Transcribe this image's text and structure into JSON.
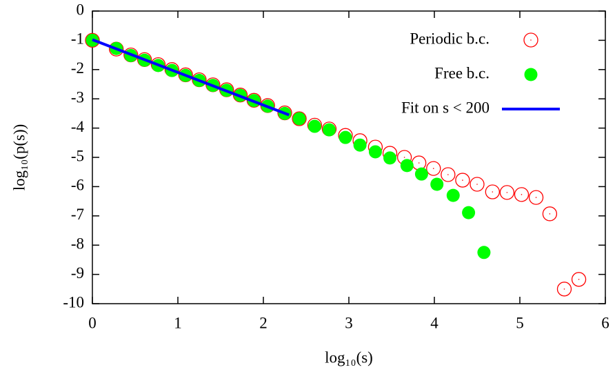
{
  "chart_data": {
    "type": "scatter",
    "x_label": "log₁₀(s)",
    "y_label": "log₁₀(p(s))",
    "xlim": [
      0,
      6
    ],
    "ylim": [
      -10,
      0
    ],
    "xticks": [
      0,
      1,
      2,
      3,
      4,
      5,
      6
    ],
    "yticks": [
      0,
      -1,
      -2,
      -3,
      -4,
      -5,
      -6,
      -7,
      -8,
      -9,
      -10
    ],
    "legend": "top-right",
    "series": [
      {
        "name": "Periodic b.c.",
        "color": "#ff0000",
        "marker": "open-circle",
        "x": [
          0,
          0.28,
          0.45,
          0.61,
          0.77,
          0.93,
          1.09,
          1.25,
          1.41,
          1.57,
          1.73,
          1.89,
          2.05,
          2.25,
          2.42,
          2.6,
          2.77,
          2.96,
          3.13,
          3.31,
          3.48,
          3.65,
          3.82,
          3.99,
          4.16,
          4.33,
          4.5,
          4.68,
          4.85,
          5.02,
          5.19,
          5.35,
          5.52,
          5.69
        ],
        "values": [
          -1,
          -1.3,
          -1.5,
          -1.66,
          -1.83,
          -2.0,
          -2.18,
          -2.35,
          -2.52,
          -2.69,
          -2.87,
          -3.05,
          -3.23,
          -3.48,
          -3.68,
          -3.9,
          -4.03,
          -4.25,
          -4.43,
          -4.65,
          -4.86,
          -5.0,
          -5.19,
          -5.38,
          -5.59,
          -5.78,
          -5.92,
          -6.18,
          -6.2,
          -6.27,
          -6.37,
          -6.93,
          -9.5,
          -9.17
        ]
      },
      {
        "name": "Free b.c.",
        "color": "#00ff00",
        "marker": "filled-circle",
        "x": [
          0,
          0.28,
          0.45,
          0.61,
          0.77,
          0.93,
          1.09,
          1.25,
          1.41,
          1.57,
          1.73,
          1.89,
          2.05,
          2.25,
          2.42,
          2.6,
          2.77,
          2.96,
          3.13,
          3.31,
          3.48,
          3.68,
          3.85,
          4.03,
          4.22,
          4.4,
          4.58
        ],
        "values": [
          -1,
          -1.28,
          -1.52,
          -1.68,
          -1.86,
          -2.03,
          -2.2,
          -2.37,
          -2.54,
          -2.71,
          -2.88,
          -3.06,
          -3.25,
          -3.5,
          -3.68,
          -3.94,
          -4.06,
          -4.32,
          -4.58,
          -4.81,
          -5.02,
          -5.28,
          -5.57,
          -5.92,
          -6.3,
          -6.89,
          -8.25
        ]
      },
      {
        "name": "Fit on s < 200",
        "color": "#0000ff",
        "marker": "line",
        "x": [
          0,
          2.3
        ],
        "values": [
          -0.98,
          -3.55
        ]
      }
    ]
  }
}
